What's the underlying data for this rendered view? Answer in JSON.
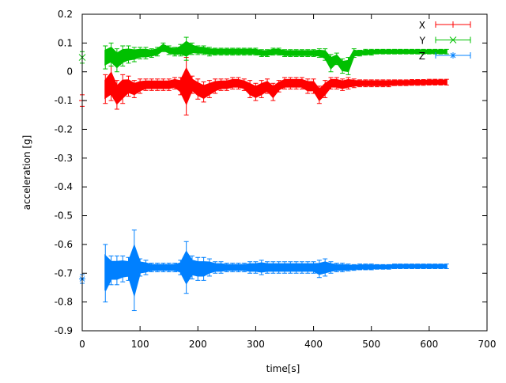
{
  "chart_data": {
    "type": "scatter",
    "title": "",
    "xlabel": "time[s]",
    "ylabel": "acceleration [g]",
    "xlim": [
      0,
      700
    ],
    "ylim": [
      -0.9,
      0.2
    ],
    "xticks": [
      "0",
      "100",
      "200",
      "300",
      "400",
      "500",
      "600",
      "700"
    ],
    "yticks": [
      "0.2",
      "0.1",
      "0",
      "-0.1",
      "-0.2",
      "-0.3",
      "-0.4",
      "-0.5",
      "-0.6",
      "-0.7",
      "-0.8",
      "-0.9"
    ],
    "grid": false,
    "legend_position": "top-right",
    "error_bars": true,
    "x": [
      0,
      40,
      50,
      60,
      70,
      80,
      90,
      100,
      110,
      120,
      130,
      140,
      150,
      160,
      170,
      180,
      190,
      200,
      210,
      220,
      230,
      240,
      250,
      260,
      270,
      280,
      290,
      300,
      310,
      320,
      330,
      340,
      350,
      360,
      370,
      380,
      390,
      400,
      410,
      420,
      430,
      440,
      450,
      460,
      470,
      480,
      490,
      500,
      510,
      520,
      530,
      540,
      550,
      560,
      570,
      580,
      590,
      600,
      610,
      620,
      630
    ],
    "series": [
      {
        "name": "X",
        "color": "#ff0000",
        "marker": "none",
        "values": [
          -0.1,
          -0.06,
          -0.04,
          -0.08,
          -0.06,
          -0.05,
          -0.06,
          -0.05,
          -0.045,
          -0.045,
          -0.045,
          -0.045,
          -0.045,
          -0.04,
          -0.05,
          -0.05,
          -0.045,
          -0.06,
          -0.07,
          -0.06,
          -0.05,
          -0.045,
          -0.045,
          -0.04,
          -0.04,
          -0.045,
          -0.06,
          -0.07,
          -0.06,
          -0.05,
          -0.07,
          -0.05,
          -0.04,
          -0.04,
          -0.04,
          -0.04,
          -0.05,
          -0.05,
          -0.08,
          -0.06,
          -0.04,
          -0.04,
          -0.045,
          -0.04,
          -0.04,
          -0.04,
          -0.04,
          -0.04,
          -0.04,
          -0.04,
          -0.04,
          -0.038,
          -0.038,
          -0.038,
          -0.037,
          -0.037,
          -0.037,
          -0.036,
          -0.036,
          -0.036,
          -0.036
        ],
        "errors": [
          0.02,
          0.05,
          0.06,
          0.05,
          0.05,
          0.035,
          0.03,
          0.025,
          0.02,
          0.02,
          0.02,
          0.02,
          0.02,
          0.02,
          0.03,
          0.1,
          0.03,
          0.035,
          0.035,
          0.03,
          0.025,
          0.02,
          0.02,
          0.02,
          0.02,
          0.02,
          0.03,
          0.03,
          0.03,
          0.025,
          0.03,
          0.02,
          0.02,
          0.02,
          0.02,
          0.02,
          0.025,
          0.025,
          0.03,
          0.03,
          0.02,
          0.02,
          0.02,
          0.02,
          0.015,
          0.012,
          0.012,
          0.012,
          0.012,
          0.012,
          0.012,
          0.01,
          0.01,
          0.01,
          0.01,
          0.01,
          0.01,
          0.01,
          0.01,
          0.01,
          0.01
        ]
      },
      {
        "name": "Y",
        "color": "#00c000",
        "marker": "x",
        "values": [
          0.05,
          0.05,
          0.06,
          0.04,
          0.055,
          0.06,
          0.06,
          0.065,
          0.065,
          0.065,
          0.07,
          0.085,
          0.075,
          0.07,
          0.075,
          0.08,
          0.08,
          0.075,
          0.075,
          0.07,
          0.07,
          0.07,
          0.07,
          0.07,
          0.07,
          0.07,
          0.07,
          0.07,
          0.065,
          0.065,
          0.07,
          0.07,
          0.065,
          0.065,
          0.065,
          0.065,
          0.065,
          0.065,
          0.065,
          0.06,
          0.03,
          0.045,
          0.02,
          0.02,
          0.065,
          0.065,
          0.068,
          0.068,
          0.07,
          0.07,
          0.07,
          0.07,
          0.07,
          0.07,
          0.07,
          0.07,
          0.07,
          0.07,
          0.07,
          0.07,
          0.07
        ],
        "errors": [
          0.02,
          0.04,
          0.04,
          0.04,
          0.035,
          0.03,
          0.025,
          0.02,
          0.02,
          0.015,
          0.015,
          0.015,
          0.015,
          0.015,
          0.02,
          0.04,
          0.02,
          0.015,
          0.015,
          0.015,
          0.012,
          0.012,
          0.012,
          0.012,
          0.012,
          0.012,
          0.012,
          0.012,
          0.012,
          0.012,
          0.012,
          0.012,
          0.012,
          0.012,
          0.012,
          0.012,
          0.012,
          0.012,
          0.015,
          0.02,
          0.03,
          0.02,
          0.025,
          0.03,
          0.015,
          0.01,
          0.01,
          0.01,
          0.008,
          0.008,
          0.008,
          0.008,
          0.008,
          0.008,
          0.008,
          0.008,
          0.008,
          0.008,
          0.008,
          0.008,
          0.008
        ]
      },
      {
        "name": "Z",
        "color": "#0080ff",
        "marker": "star",
        "values": [
          -0.72,
          -0.7,
          -0.69,
          -0.69,
          -0.685,
          -0.685,
          -0.69,
          -0.68,
          -0.68,
          -0.68,
          -0.68,
          -0.68,
          -0.68,
          -0.68,
          -0.68,
          -0.68,
          -0.68,
          -0.685,
          -0.685,
          -0.68,
          -0.68,
          -0.68,
          -0.68,
          -0.68,
          -0.68,
          -0.68,
          -0.68,
          -0.68,
          -0.68,
          -0.68,
          -0.68,
          -0.68,
          -0.68,
          -0.68,
          -0.68,
          -0.68,
          -0.68,
          -0.68,
          -0.685,
          -0.68,
          -0.68,
          -0.68,
          -0.68,
          -0.68,
          -0.68,
          -0.678,
          -0.678,
          -0.678,
          -0.678,
          -0.678,
          -0.678,
          -0.676,
          -0.676,
          -0.676,
          -0.676,
          -0.676,
          -0.676,
          -0.676,
          -0.676,
          -0.676,
          -0.676
        ],
        "errors": [
          0.015,
          0.1,
          0.05,
          0.05,
          0.045,
          0.04,
          0.14,
          0.03,
          0.025,
          0.015,
          0.015,
          0.015,
          0.015,
          0.015,
          0.025,
          0.09,
          0.04,
          0.04,
          0.04,
          0.03,
          0.02,
          0.02,
          0.015,
          0.015,
          0.015,
          0.015,
          0.02,
          0.02,
          0.025,
          0.02,
          0.02,
          0.02,
          0.02,
          0.02,
          0.02,
          0.02,
          0.02,
          0.02,
          0.03,
          0.03,
          0.02,
          0.015,
          0.015,
          0.012,
          0.01,
          0.01,
          0.01,
          0.01,
          0.008,
          0.008,
          0.008,
          0.008,
          0.008,
          0.008,
          0.008,
          0.008,
          0.008,
          0.008,
          0.008,
          0.008,
          0.008
        ]
      }
    ]
  }
}
